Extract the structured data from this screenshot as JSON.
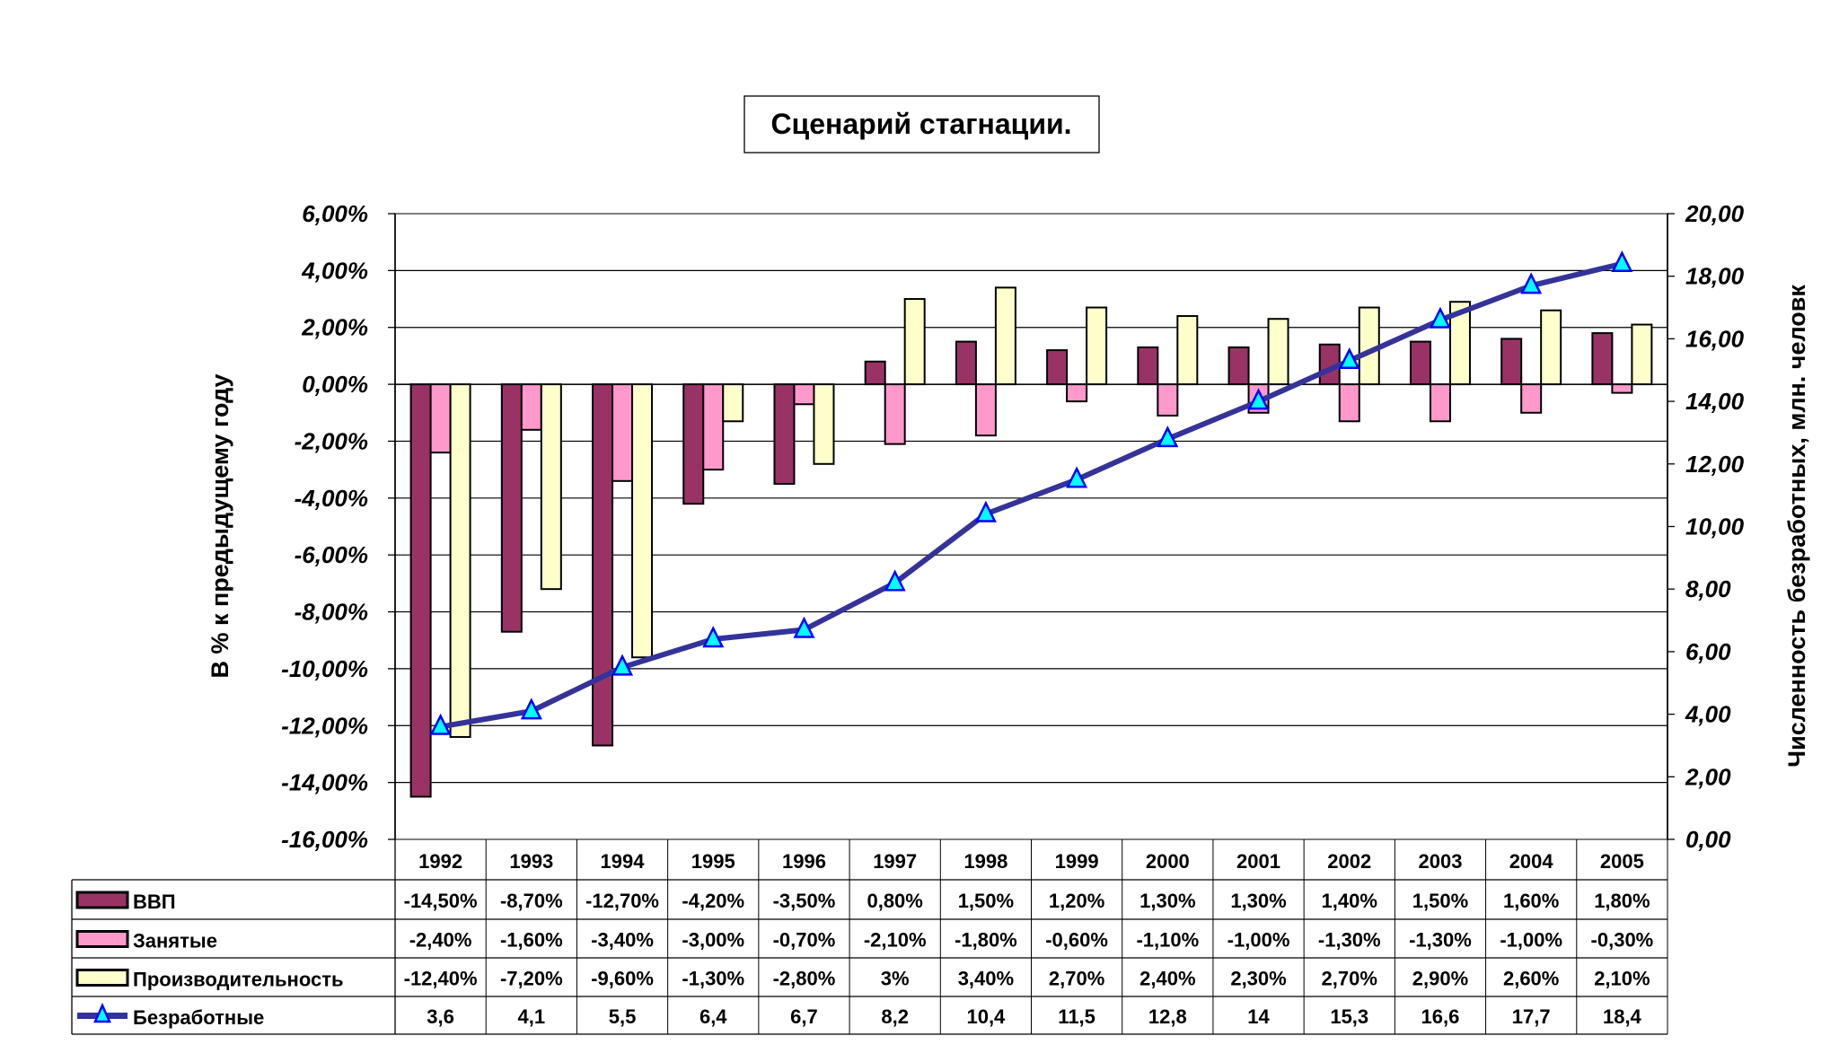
{
  "chart_data": {
    "type": "bar",
    "title": "Сценарий стагнации.",
    "ylabel": "В % к предыдущему году",
    "y2label": "Численность безработных, млн. человк",
    "ylim": [
      -16,
      6
    ],
    "y2lim": [
      0,
      20
    ],
    "yticks": [
      "6,00%",
      "4,00%",
      "2,00%",
      "0,00%",
      "-2,00%",
      "-4,00%",
      "-6,00%",
      "-8,00%",
      "-10,00%",
      "-12,00%",
      "-14,00%",
      "-16,00%"
    ],
    "y2ticks": [
      "20,00",
      "18,00",
      "16,00",
      "14,00",
      "12,00",
      "10,00",
      "8,00",
      "6,00",
      "4,00",
      "2,00",
      "0,00"
    ],
    "grid": true,
    "legend_placement": "data-table-bottom",
    "categories": [
      "1992",
      "1993",
      "1994",
      "1995",
      "1996",
      "1997",
      "1998",
      "1999",
      "2000",
      "2001",
      "2002",
      "2003",
      "2004",
      "2005"
    ],
    "series": [
      {
        "name": "ВВП",
        "type": "bar",
        "axis": "left",
        "color": "#993366",
        "values": [
          -14.5,
          -8.7,
          -12.7,
          -4.2,
          -3.5,
          0.8,
          1.5,
          1.2,
          1.3,
          1.3,
          1.4,
          1.5,
          1.6,
          1.8
        ],
        "labels": [
          "-14,50%",
          "-8,70%",
          "-12,70%",
          "-4,20%",
          "-3,50%",
          "0,80%",
          "1,50%",
          "1,20%",
          "1,30%",
          "1,30%",
          "1,40%",
          "1,50%",
          "1,60%",
          "1,80%"
        ]
      },
      {
        "name": "Занятые",
        "type": "bar",
        "axis": "left",
        "color": "#ff99cc",
        "values": [
          -2.4,
          -1.6,
          -3.4,
          -3.0,
          -0.7,
          -2.1,
          -1.8,
          -0.6,
          -1.1,
          -1.0,
          -1.3,
          -1.3,
          -1.0,
          -0.3
        ],
        "labels": [
          "-2,40%",
          "-1,60%",
          "-3,40%",
          "-3,00%",
          "-0,70%",
          "-2,10%",
          "-1,80%",
          "-0,60%",
          "-1,10%",
          "-1,00%",
          "-1,30%",
          "-1,30%",
          "-1,00%",
          "-0,30%"
        ]
      },
      {
        "name": "Производительность",
        "type": "bar",
        "axis": "left",
        "color": "#ffffcc",
        "values": [
          -12.4,
          -7.2,
          -9.6,
          -1.3,
          -2.8,
          3.0,
          3.4,
          2.7,
          2.4,
          2.3,
          2.7,
          2.9,
          2.6,
          2.1
        ],
        "labels": [
          "-12,40%",
          "-7,20%",
          "-9,60%",
          "-1,30%",
          "-2,80%",
          "3%",
          "3,40%",
          "2,70%",
          "2,40%",
          "2,30%",
          "2,70%",
          "2,90%",
          "2,60%",
          "2,10%"
        ]
      },
      {
        "name": "Безработные",
        "type": "line",
        "axis": "right",
        "color": "#333399",
        "marker_color": "#00ffff",
        "values": [
          3.6,
          4.1,
          5.5,
          6.4,
          6.7,
          8.2,
          10.4,
          11.5,
          12.8,
          14,
          15.3,
          16.6,
          17.7,
          18.4
        ],
        "labels": [
          "3,6",
          "4,1",
          "5,5",
          "6,4",
          "6,7",
          "8,2",
          "10,4",
          "11,5",
          "12,8",
          "14",
          "15,3",
          "16,6",
          "17,7",
          "18,4"
        ]
      }
    ]
  }
}
